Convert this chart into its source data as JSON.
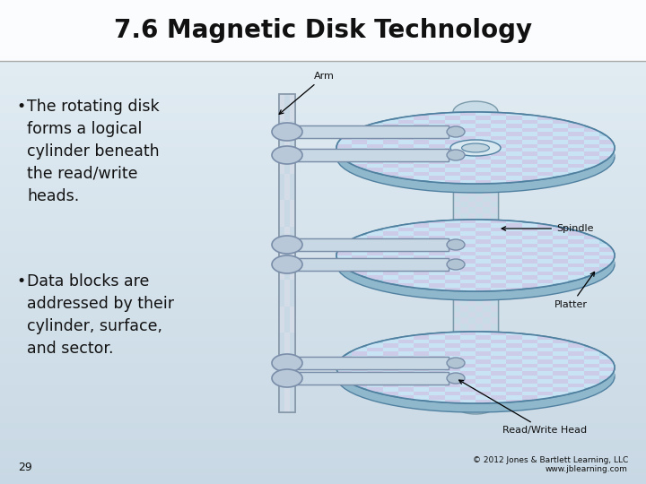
{
  "title": "7.6 Magnetic Disk Technology",
  "title_fontsize": 20,
  "title_fontweight": "bold",
  "bullet1": "The rotating disk\nforms a logical\ncylinder beneath\nthe read/write\nheads.",
  "bullet2": "Data blocks are\naddressed by their\ncylinder, surface,\nand sector.",
  "page_number": "29",
  "copyright": "© 2012 Jones & Bartlett Learning, LLC\nwww.jblearning.com",
  "label_arm": "Arm",
  "label_spindle": "Spindle",
  "label_platter": "Platter",
  "label_rwhead": "Read/Write Head",
  "disk_color": "#b8dcea",
  "disk_check_color": "#cce8f4",
  "disk_check_alt": "#d8d8ee",
  "spindle_color": "#c8dce8",
  "arm_color": "#c0d0dc",
  "arm_edge": "#8899aa",
  "text_color": "#111111",
  "bg_color_top": "#c8d8e4",
  "bg_color_bot": "#dce8f0",
  "label_fontsize": 8,
  "bullet_fontsize": 12.5
}
